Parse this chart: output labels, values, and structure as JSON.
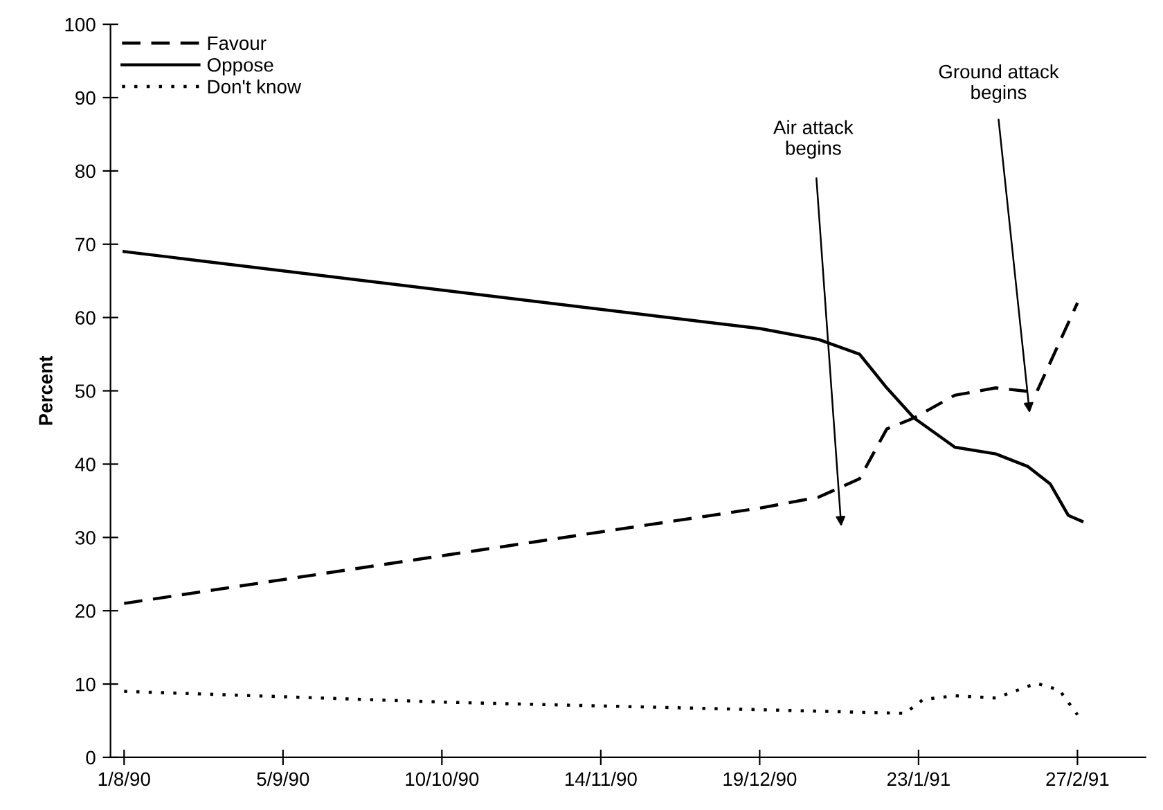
{
  "chart_data": {
    "type": "line",
    "ylabel": "Percent",
    "series": [
      {
        "name": "Favour",
        "color": "#000000",
        "line_style": "dashed",
        "x": [
          "1990-08-01",
          "1990-12-19",
          "1991-01-01",
          "1991-01-10",
          "1991-01-16",
          "1991-01-22",
          "1991-01-31",
          "1991-02-09",
          "1991-02-18",
          "1991-02-27"
        ],
        "values": [
          21,
          34,
          35.5,
          38,
          44.8,
          46.3,
          49.4,
          50.4,
          49.8,
          62
        ]
      },
      {
        "name": "Oppose",
        "color": "#000000",
        "line_style": "solid",
        "x": [
          "1990-08-01",
          "1990-12-19",
          "1991-01-01",
          "1991-01-10",
          "1991-01-16",
          "1991-01-22",
          "1991-01-31",
          "1991-02-09",
          "1991-02-16",
          "1991-02-21",
          "1991-02-25",
          "1991-02-28"
        ],
        "values": [
          69,
          58.5,
          57,
          55,
          50.4,
          46.3,
          42.3,
          41.4,
          39.7,
          37.3,
          33,
          32.2
        ]
      },
      {
        "name": "Don't know",
        "color": "#000000",
        "line_style": "dotted",
        "x": [
          "1990-08-01",
          "1990-10-12",
          "1990-12-19",
          "1991-01-20",
          "1991-01-24",
          "1991-01-31",
          "1991-02-09",
          "1991-02-18",
          "1991-02-23",
          "1991-02-27"
        ],
        "values": [
          9,
          7.5,
          6.5,
          6.0,
          7.9,
          8.4,
          8.1,
          10.1,
          9.2,
          5.8
        ]
      }
    ],
    "annotations": [
      "Air attack\nbegins",
      "Ground attack\nbegins"
    ],
    "xlim": [
      "1990-07-29",
      "1991-03-14"
    ],
    "xticks": [
      {
        "value": "1990-08-01",
        "label": "1/8/90"
      },
      {
        "value": "1990-09-05",
        "label": "5/9/90"
      },
      {
        "value": "1990-10-10",
        "label": "10/10/90"
      },
      {
        "value": "1990-11-14",
        "label": "14/11/90"
      },
      {
        "value": "1990-12-19",
        "label": "19/12/90"
      },
      {
        "value": "1991-01-23",
        "label": "23/1/91"
      },
      {
        "value": "1991-02-27",
        "label": "27/2/91"
      }
    ],
    "ylim": [
      0,
      100
    ],
    "yticks": [
      0,
      10,
      20,
      30,
      40,
      50,
      60,
      70,
      80,
      90,
      100
    ],
    "grid": false,
    "legend": "top left",
    "marker": "none"
  }
}
